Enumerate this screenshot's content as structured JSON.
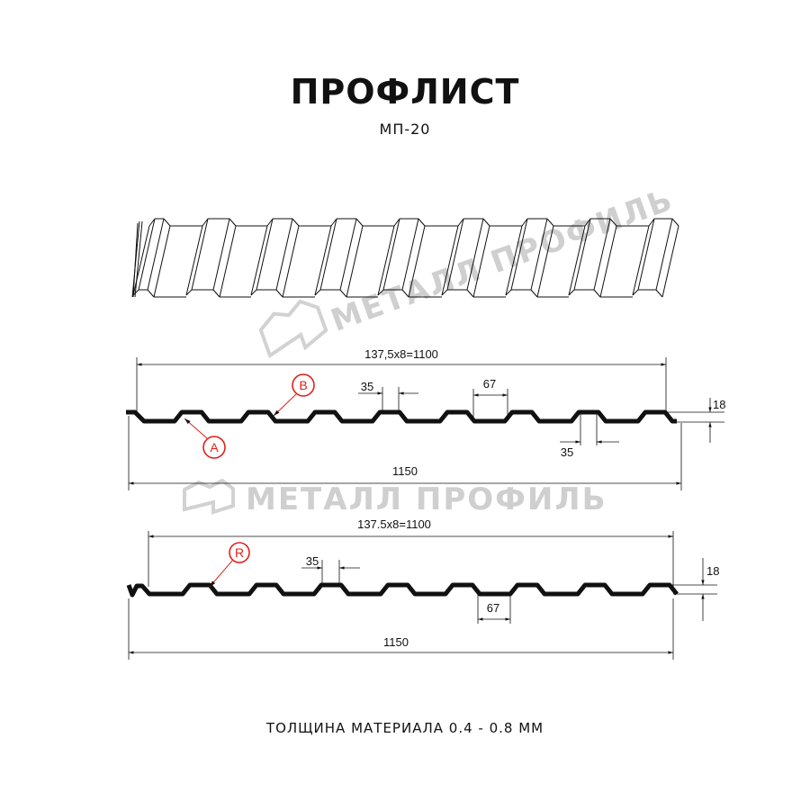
{
  "header": {
    "title": "ПРОФЛИСТ",
    "subtitle": "МП-20"
  },
  "watermark": {
    "text": "МЕТАЛЛ ПРОФИЛЬ",
    "color": "#cfcfcf"
  },
  "profile_a": {
    "overall_top": "137,5x8=1100",
    "overall_bottom": "1150",
    "crest_width": "35",
    "valley_width": "67",
    "lower_width": "35",
    "height": "18",
    "marker_a": "A",
    "marker_b": "B"
  },
  "profile_b": {
    "overall_top": "137.5x8=1100",
    "overall_bottom": "1150",
    "crest_width": "35",
    "valley_width": "67",
    "height": "18",
    "marker_r": "R"
  },
  "footer": {
    "thickness": "ТОЛЩИНА МАТЕРИАЛА 0.4 - 0.8 ММ"
  },
  "colors": {
    "marker": "#e0201b",
    "line": "#111111"
  }
}
